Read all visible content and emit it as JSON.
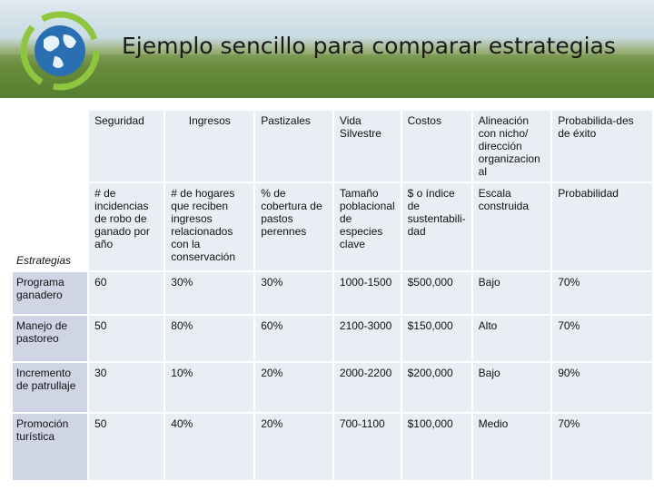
{
  "header": {
    "title": "Ejemplo sencillo para comparar estrategias"
  },
  "table": {
    "columns": [
      "Seguridad",
      "Ingresos",
      "Pastizales",
      "Vida Silvestre",
      "Costos",
      "Alineación con nicho/ dirección organizacion al",
      "Probabilida-des de éxito"
    ],
    "metric_label": "Estrategias",
    "metrics": [
      "# de incidencias de robo de ganado por año",
      "# de hogares que reciben ingresos relacionados con la conservación",
      "% de cobertura de pastos perennes",
      "Tamaño poblacional de especies clave",
      "$ o índice de sustentabili-dad",
      "Escala construida",
      "Probabilidad"
    ],
    "rows": [
      {
        "label": "Programa ganadero",
        "values": [
          "60",
          "30%",
          "30%",
          "1000-1500",
          "$500,000",
          "Bajo",
          "70%"
        ]
      },
      {
        "label": "Manejo de pastoreo",
        "values": [
          "50",
          "80%",
          "60%",
          "2100-3000",
          "$150,000",
          "Alto",
          "70%"
        ]
      },
      {
        "label": "Incremento de patrullaje",
        "values": [
          "30",
          "10%",
          "20%",
          "2000-2200",
          "$200,000",
          "Bajo",
          "90%"
        ]
      },
      {
        "label": "Promoción turística",
        "values": [
          "50",
          "40%",
          "20%",
          "700-1100",
          "$100,000",
          "Medio",
          "70%"
        ]
      }
    ]
  }
}
